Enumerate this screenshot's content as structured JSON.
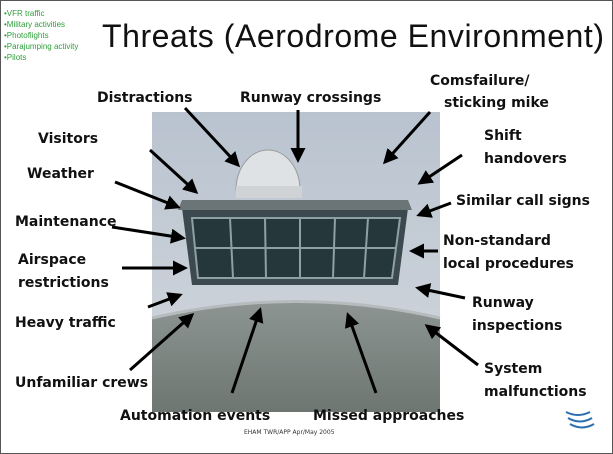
{
  "sidebar_list": [
    "•VFR traffic",
    "•Military activities",
    "•Photoflights",
    "•Parajumping activity",
    "•Pilots"
  ],
  "title": "Threats (Aerodrome Environment)",
  "labels": [
    [
      "Distractions"
    ],
    [
      "Runway crossings"
    ],
    [
      "Comsfailure/",
      "sticking mike"
    ],
    [
      "Visitors"
    ],
    [
      "Shift",
      "handovers"
    ],
    [
      "Weather"
    ],
    [
      "Similar call signs"
    ],
    [
      "Maintenance"
    ],
    [
      "Non-standard",
      "local procedures"
    ],
    [
      "Airspace",
      "restrictions"
    ],
    [
      "Heavy traffic"
    ],
    [
      "Runway",
      "inspections"
    ],
    [
      "Unfamiliar crews"
    ],
    [
      "System",
      "malfunctions"
    ],
    [
      "Automation events"
    ],
    [
      "Missed approaches"
    ]
  ],
  "footer": "EHAM TWR/APP Apr/May 2005"
}
